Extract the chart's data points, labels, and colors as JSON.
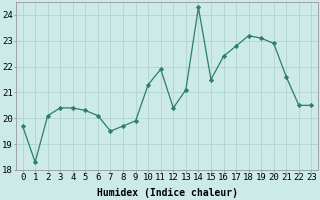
{
  "x": [
    0,
    1,
    2,
    3,
    4,
    5,
    6,
    7,
    8,
    9,
    10,
    11,
    12,
    13,
    14,
    15,
    16,
    17,
    18,
    19,
    20,
    21,
    22,
    23
  ],
  "y": [
    19.7,
    18.3,
    20.1,
    20.4,
    20.4,
    20.3,
    20.1,
    19.5,
    19.7,
    19.9,
    21.3,
    21.9,
    20.4,
    21.1,
    24.3,
    21.5,
    22.4,
    22.8,
    23.2,
    23.1,
    22.9,
    21.6,
    20.5,
    20.5
  ],
  "line_color": "#2e7d6e",
  "marker": "D",
  "marker_size": 2.2,
  "bg_color": "#cceae7",
  "grid_color": "#b0d4d0",
  "xlabel": "Humidex (Indice chaleur)",
  "ylim": [
    18,
    24.5
  ],
  "xlim": [
    -0.5,
    23.5
  ],
  "yticks": [
    18,
    19,
    20,
    21,
    22,
    23,
    24
  ],
  "xticks": [
    0,
    1,
    2,
    3,
    4,
    5,
    6,
    7,
    8,
    9,
    10,
    11,
    12,
    13,
    14,
    15,
    16,
    17,
    18,
    19,
    20,
    21,
    22,
    23
  ],
  "xlabel_fontsize": 7.0,
  "tick_fontsize": 6.5,
  "linewidth": 0.9
}
